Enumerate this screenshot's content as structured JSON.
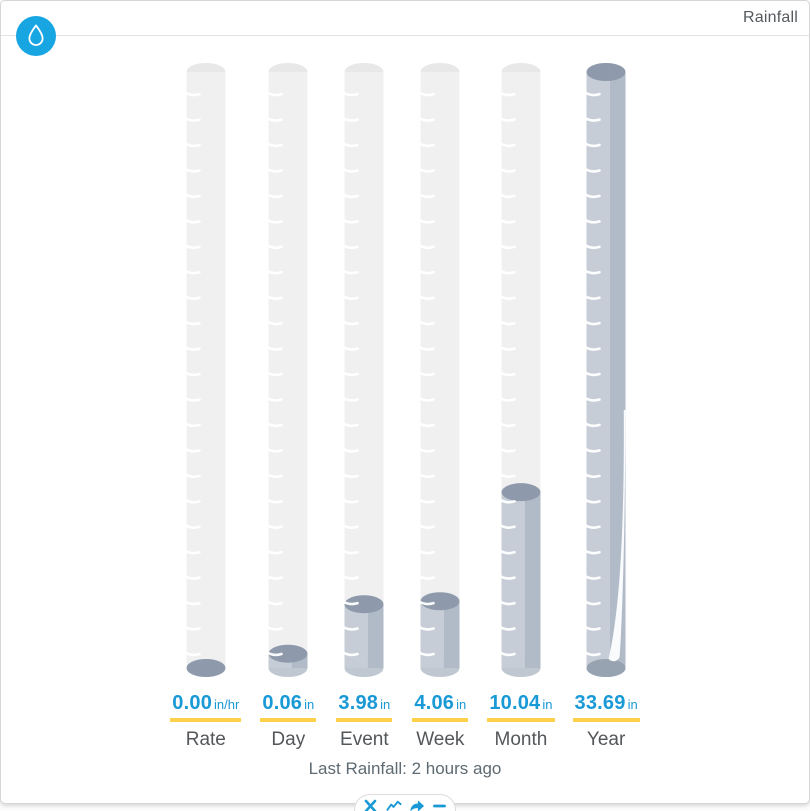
{
  "header": {
    "title": "Rainfall",
    "sensor_icon": "water-drop-icon"
  },
  "theme": {
    "accent_blue": "#1999d6",
    "badge_blue": "#17a6e2",
    "underline_yellow": "#fdd24a",
    "glass_body": "#f0f0f0",
    "glass_cap": "#e8e8e8",
    "fill_top": "#8e9aab",
    "fill_left": "#c6cdd7",
    "fill_right": "#b1bbc8",
    "fill_bottom_rim": "#bfc7d1",
    "fill_bottom_dark": "#98a3b1",
    "tick_color": "#ffffff",
    "highlight_sliver": "#fafbfd"
  },
  "chart_data": {
    "type": "bar",
    "subtype": "cylinder-gauge",
    "title": "Rainfall",
    "categories": [
      "Rate",
      "Day",
      "Event",
      "Week",
      "Month",
      "Year"
    ],
    "values": [
      0.0,
      0.06,
      3.98,
      4.06,
      10.04,
      33.69
    ],
    "display_values": [
      "0.00",
      "0.06",
      "3.98",
      "4.06",
      "10.04",
      "33.69"
    ],
    "units": [
      "in/hr",
      "in",
      "in",
      "in",
      "in",
      "in"
    ],
    "fill_fractions": [
      0,
      0.024,
      0.107,
      0.112,
      0.295,
      1.0
    ],
    "legend_position": "none",
    "grid": false
  },
  "footer": {
    "text": "Last Rainfall: 2 hours ago",
    "label": "Last Rainfall:",
    "value": "2 hours ago"
  },
  "toolbar": {
    "buttons": [
      {
        "name": "close-icon",
        "action": "remove widget"
      },
      {
        "name": "chart-icon",
        "action": "view graph"
      },
      {
        "name": "share-icon",
        "action": "share"
      },
      {
        "name": "minimize-icon",
        "action": "minimize"
      }
    ]
  }
}
